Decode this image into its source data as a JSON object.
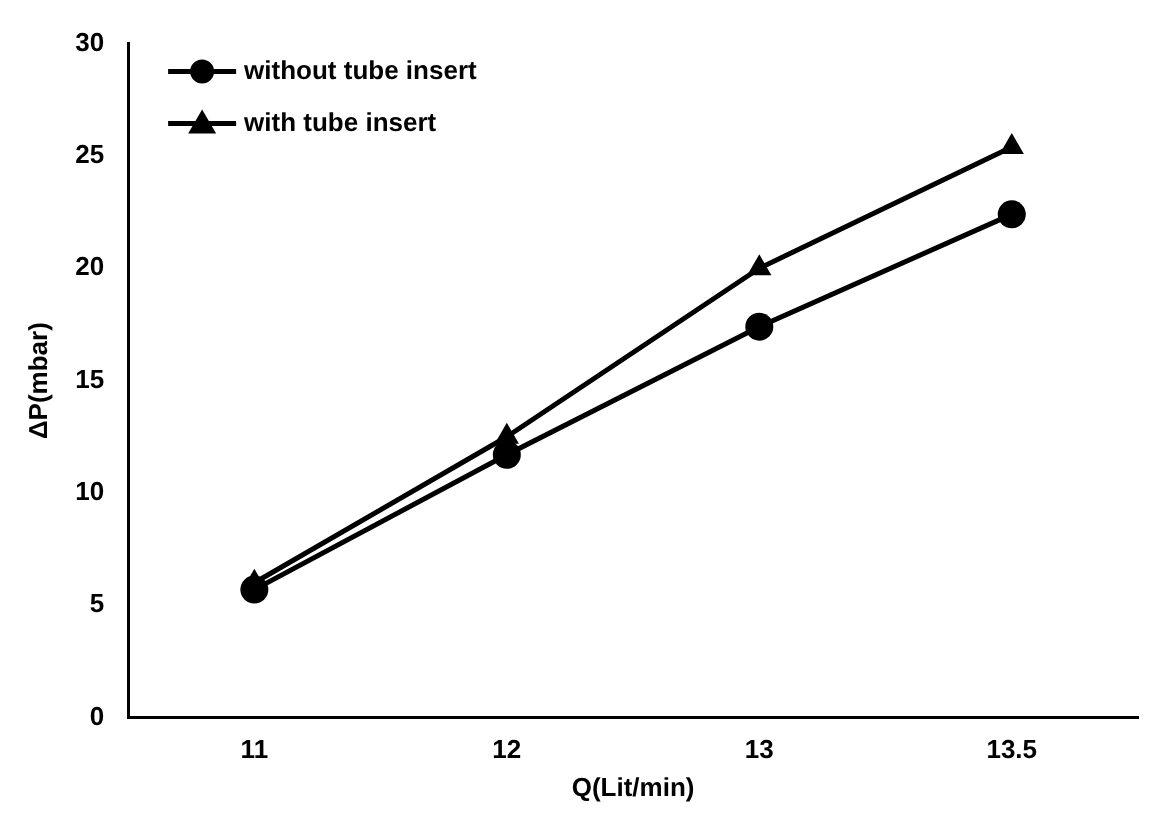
{
  "chart_data": {
    "type": "line",
    "xlabel": "Q(Lit/min)",
    "ylabel": "ΔP(mbar)",
    "categories": [
      "11",
      "12",
      "13",
      "13.5"
    ],
    "series": [
      {
        "name": "without tube insert",
        "color": "#000000",
        "marker": "circle",
        "values": [
          5.7,
          11.7,
          17.4,
          22.4
        ]
      },
      {
        "name": "with tube insert",
        "color": "#000000",
        "marker": "triangle",
        "values": [
          6.0,
          12.5,
          20.0,
          25.4
        ]
      }
    ],
    "ylim": [
      0,
      30
    ],
    "yticks": [
      0,
      5,
      10,
      15,
      20,
      25,
      30
    ],
    "grid": false,
    "legend": "top left",
    "line_style": "solid"
  }
}
